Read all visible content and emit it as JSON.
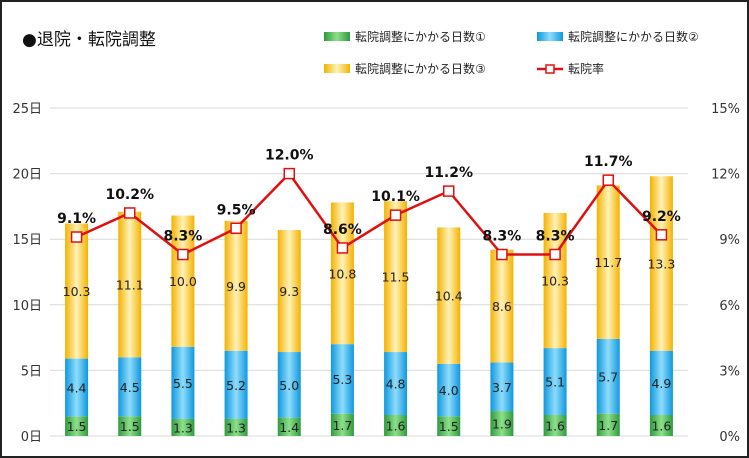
{
  "chart_data": {
    "type": "bar",
    "stacked": true,
    "title": "●退院・転院調整",
    "categories": [
      "",
      "",
      "",
      "",
      "",
      "",
      "",
      "",
      "",
      "",
      "",
      ""
    ],
    "series": [
      {
        "name": "転院調整にかかる日数①",
        "color": "#3aa84a",
        "values": [
          1.5,
          1.5,
          1.3,
          1.3,
          1.4,
          1.7,
          1.6,
          1.5,
          1.9,
          1.6,
          1.7,
          1.6
        ]
      },
      {
        "name": "転院調整にかかる日数②",
        "color": "#1aa7e8",
        "values": [
          4.4,
          4.5,
          5.5,
          5.2,
          5.0,
          5.3,
          4.8,
          4.0,
          3.7,
          5.1,
          5.7,
          4.9
        ]
      },
      {
        "name": "転院調整にかかる日数③",
        "color": "#f5b800",
        "values": [
          10.3,
          11.1,
          10.0,
          9.9,
          9.3,
          10.8,
          11.5,
          10.4,
          8.6,
          10.3,
          11.7,
          13.3
        ]
      }
    ],
    "line_series": {
      "name": "転院率",
      "color": "#e01010",
      "values": [
        9.1,
        10.2,
        8.3,
        9.5,
        12.0,
        8.6,
        10.1,
        11.2,
        8.3,
        8.3,
        11.7,
        9.2
      ],
      "labels": [
        "9.1%",
        "10.2%",
        "8.3%",
        "9.5%",
        "12.0%",
        "8.6%",
        "10.1%",
        "11.2%",
        "8.3%",
        "8.3%",
        "11.7%",
        "9.2%"
      ]
    },
    "segment_labels": [
      [
        "1.5",
        "4.4",
        "10.3"
      ],
      [
        "1.5",
        "4.5",
        "11.1"
      ],
      [
        "1.3",
        "5.5",
        "10.0"
      ],
      [
        "1.3",
        "5.2",
        "9.9"
      ],
      [
        "1.4",
        "5.0",
        "9.3"
      ],
      [
        "1.7",
        "5.3",
        "10.8"
      ],
      [
        "1.6",
        "4.8",
        "11.5"
      ],
      [
        "1.5",
        "4.0",
        "10.4"
      ],
      [
        "1.9",
        "3.7",
        "8.6"
      ],
      [
        "1.6",
        "5.1",
        "10.3"
      ],
      [
        "1.7",
        "5.7",
        "11.7"
      ],
      [
        "1.6",
        "4.9",
        "13.3"
      ]
    ],
    "y_left": {
      "range": [
        0,
        25
      ],
      "ticks": [
        "0日",
        "5日",
        "10日",
        "15日",
        "20日",
        "25日"
      ]
    },
    "y_right": {
      "range": [
        0,
        15
      ],
      "ticks": [
        "0%",
        "3%",
        "6%",
        "9%",
        "12%",
        "15%"
      ]
    },
    "grid": true,
    "legend_position": "top-right"
  }
}
